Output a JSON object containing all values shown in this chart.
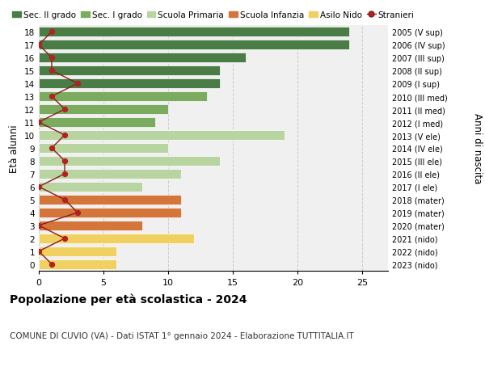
{
  "ages": [
    18,
    17,
    16,
    15,
    14,
    13,
    12,
    11,
    10,
    9,
    8,
    7,
    6,
    5,
    4,
    3,
    2,
    1,
    0
  ],
  "right_labels": [
    "2005 (V sup)",
    "2006 (IV sup)",
    "2007 (III sup)",
    "2008 (II sup)",
    "2009 (I sup)",
    "2010 (III med)",
    "2011 (II med)",
    "2012 (I med)",
    "2013 (V ele)",
    "2014 (IV ele)",
    "2015 (III ele)",
    "2016 (II ele)",
    "2017 (I ele)",
    "2018 (mater)",
    "2019 (mater)",
    "2020 (mater)",
    "2021 (nido)",
    "2022 (nido)",
    "2023 (nido)"
  ],
  "bar_values": [
    24,
    24,
    16,
    14,
    14,
    13,
    10,
    9,
    19,
    10,
    14,
    11,
    8,
    11,
    11,
    8,
    12,
    6,
    6
  ],
  "bar_colors": [
    "#4a7c45",
    "#4a7c45",
    "#4a7c45",
    "#4a7c45",
    "#4a7c45",
    "#7aab5e",
    "#7aab5e",
    "#7aab5e",
    "#b8d4a0",
    "#b8d4a0",
    "#b8d4a0",
    "#b8d4a0",
    "#b8d4a0",
    "#d4753a",
    "#d4753a",
    "#d4753a",
    "#f0d060",
    "#f0d060",
    "#f0d060"
  ],
  "stranieri_values": [
    1,
    0,
    1,
    1,
    3,
    1,
    2,
    0,
    2,
    1,
    2,
    2,
    0,
    2,
    3,
    0,
    2,
    0,
    1
  ],
  "legend_labels": [
    "Sec. II grado",
    "Sec. I grado",
    "Scuola Primaria",
    "Scuola Infanzia",
    "Asilo Nido",
    "Stranieri"
  ],
  "legend_colors": [
    "#4a7c45",
    "#7aab5e",
    "#b8d4a0",
    "#d4753a",
    "#f0d060",
    "#b22222"
  ],
  "title": "Popolazione per età scolastica - 2024",
  "subtitle": "COMUNE DI CUVIO (VA) - Dati ISTAT 1° gennaio 2024 - Elaborazione TUTTITALIA.IT",
  "ylabel_left": "Età alunni",
  "ylabel_right": "Anni di nascita",
  "xlim": [
    0,
    27
  ],
  "xticks": [
    0,
    5,
    10,
    15,
    20,
    25
  ],
  "background_color": "#ffffff",
  "bar_background": "#f0f0f0",
  "grid_color": "#cccccc",
  "stranieri_line_color": "#8b1a1a",
  "stranieri_dot_color": "#b22222"
}
